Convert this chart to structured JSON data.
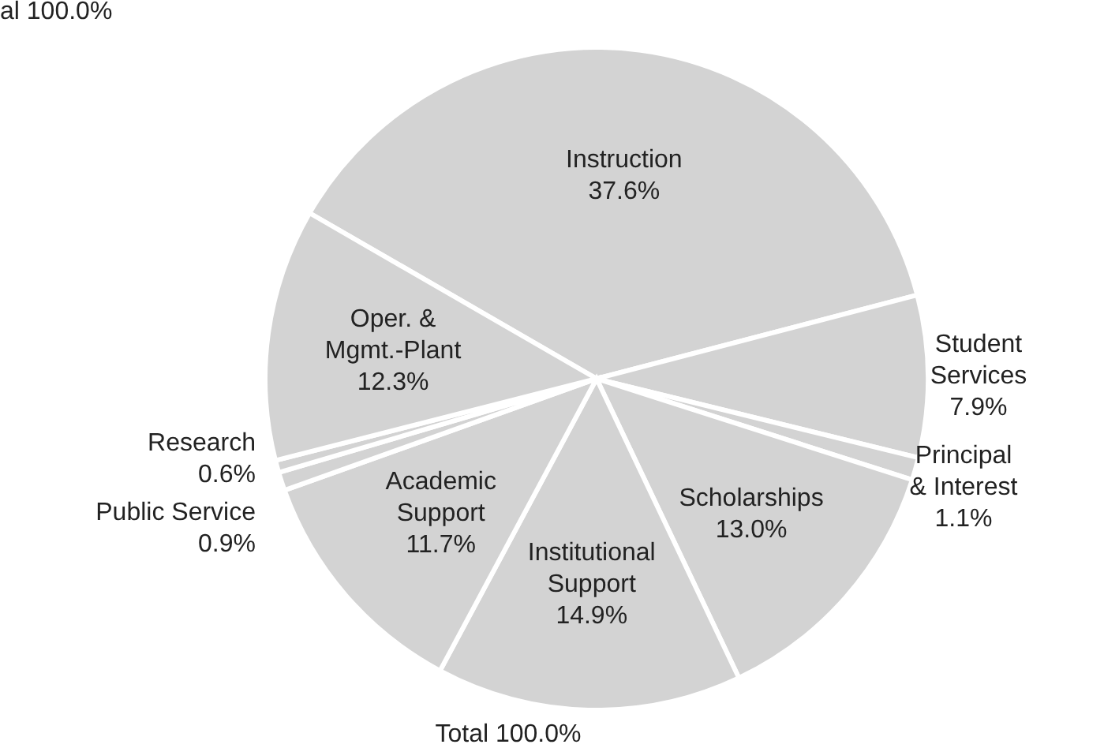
{
  "chart_data": {
    "type": "pie",
    "categories": [
      "Instruction",
      "Student Services",
      "Principal & Interest",
      "Scholarships",
      "Institutional Support",
      "Academic Support",
      "Public Service",
      "Research",
      "Oper. & Mgmt.-Plant"
    ],
    "values": [
      37.6,
      7.9,
      1.1,
      13.0,
      14.9,
      11.7,
      0.9,
      0.6,
      12.3
    ],
    "value_labels": [
      "37.6%",
      "7.9%",
      "1.1%",
      "13.0%",
      "14.9%",
      "11.7%",
      "0.9%",
      "0.6%",
      "12.3%"
    ],
    "colors": [
      "#d3d3d3",
      "#d3d3d3",
      "#d3d3d3",
      "#d3d3d3",
      "#d3d3d3",
      "#d3d3d3",
      "#d3d3d3",
      "#d3d3d3",
      "#d3d3d3"
    ],
    "annotations": [
      "al 100.0%",
      "Total 100.0%"
    ]
  }
}
